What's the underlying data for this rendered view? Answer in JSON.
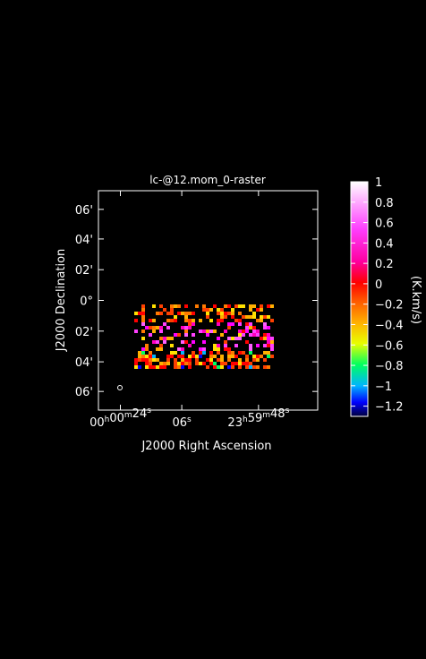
{
  "chart_data": {
    "type": "heatmap",
    "title": "lc-@12.mom_0-raster",
    "xlabel": "J2000 Right Ascension",
    "ylabel": "J2000 Declination",
    "x_ticks": [
      {
        "h": "00",
        "m": "00",
        "s": "24",
        "frac": 0.1
      },
      {
        "h": "",
        "m": "",
        "s": "06",
        "frac": 0.38
      },
      {
        "h": "23",
        "m": "59",
        "s": "48",
        "frac": 0.73
      }
    ],
    "y_ticks": [
      {
        "label": "06'",
        "frac": 0.085
      },
      {
        "label": "04'",
        "frac": 0.22
      },
      {
        "label": "02'",
        "frac": 0.36
      },
      {
        "label": "0°",
        "frac": 0.5
      },
      {
        "label": "02'",
        "frac": 0.64
      },
      {
        "label": "04'",
        "frac": 0.78
      },
      {
        "label": "06'",
        "frac": 0.915
      }
    ],
    "colorbar": {
      "label": "(K.km/s)",
      "range": [
        -1.3,
        1.0
      ],
      "ticks": [
        "1",
        "0.8",
        "0.6",
        "0.4",
        "0.2",
        "0",
        "−0.2",
        "−0.4",
        "−0.6",
        "−0.8",
        "−1",
        "−1.2"
      ],
      "tick_values": [
        1,
        0.8,
        0.6,
        0.4,
        0.2,
        0,
        -0.2,
        -0.4,
        -0.6,
        -0.8,
        -1,
        -1.2
      ]
    },
    "beam": "ellipse",
    "grid": false,
    "legend": "colorbar-right"
  }
}
